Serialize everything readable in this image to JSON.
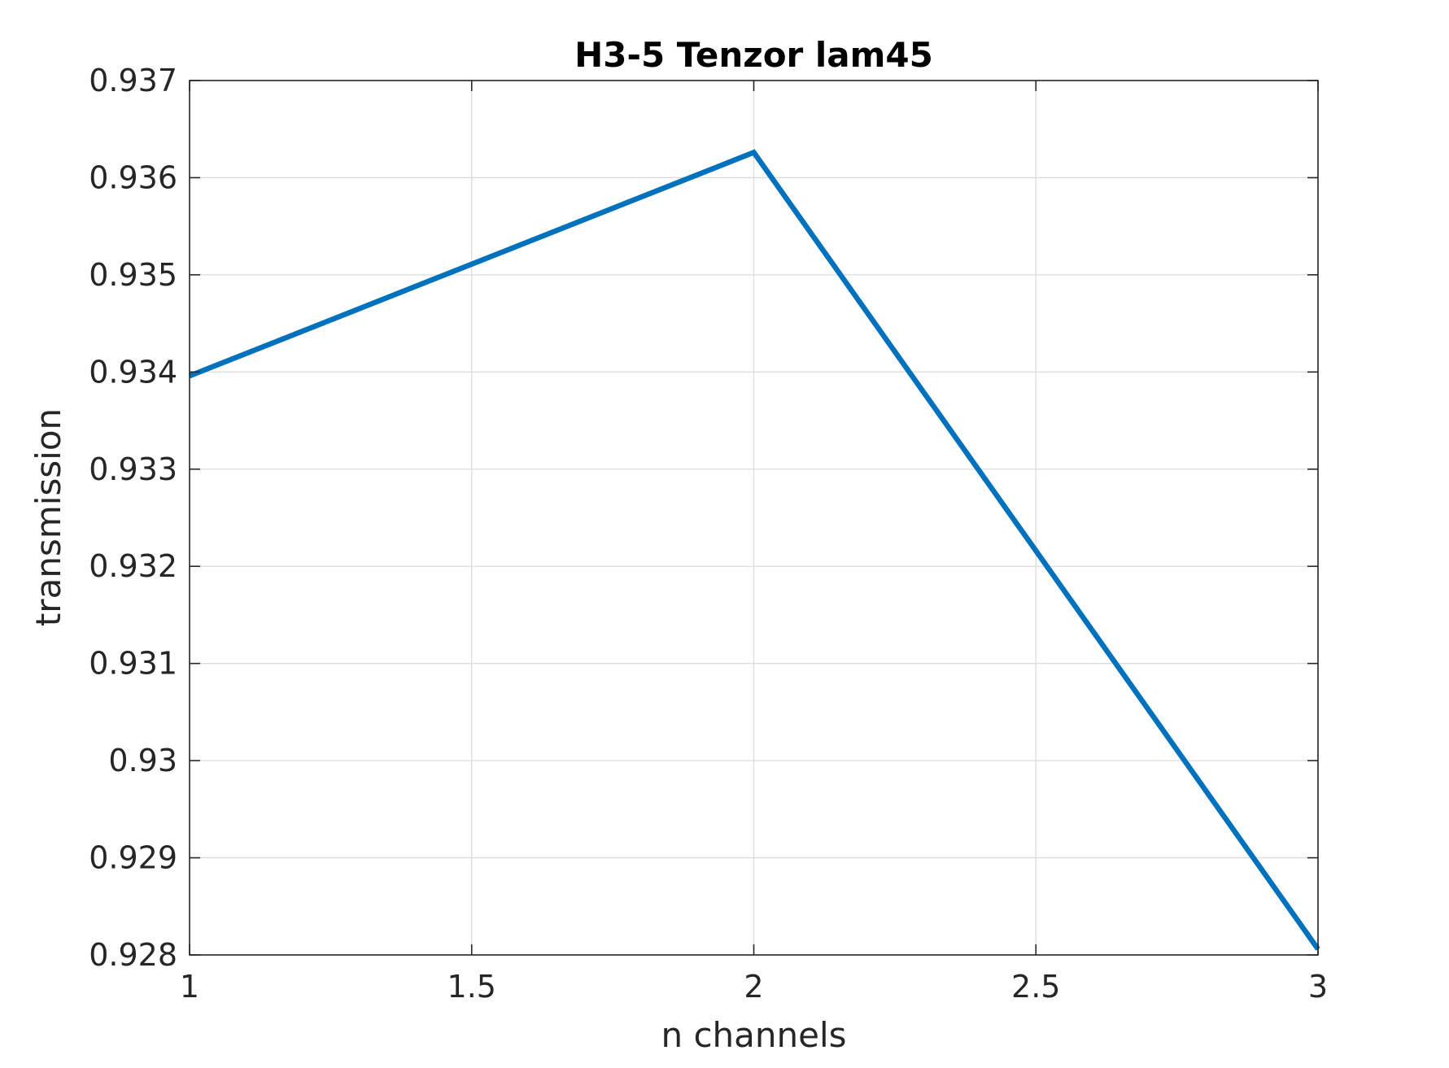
{
  "chart_data": {
    "type": "line",
    "title": "H3-5 Tenzor lam45",
    "xlabel": "n channels",
    "ylabel": "transmission",
    "xlim": [
      1,
      3
    ],
    "ylim": [
      0.928,
      0.937
    ],
    "xticks": [
      1,
      1.5,
      2,
      2.5,
      3
    ],
    "xtick_labels": [
      "1",
      "1.5",
      "2",
      "2.5",
      "3"
    ],
    "yticks": [
      0.928,
      0.929,
      0.93,
      0.931,
      0.932,
      0.933,
      0.934,
      0.935,
      0.936,
      0.937
    ],
    "ytick_labels": [
      "0.928",
      "0.929",
      "0.93",
      "0.931",
      "0.932",
      "0.933",
      "0.934",
      "0.935",
      "0.936",
      "0.937"
    ],
    "grid": true,
    "series": [
      {
        "x": [
          1,
          2,
          3
        ],
        "y": [
          0.93396,
          0.93626,
          0.92806
        ],
        "color": "#0072BD"
      }
    ]
  }
}
